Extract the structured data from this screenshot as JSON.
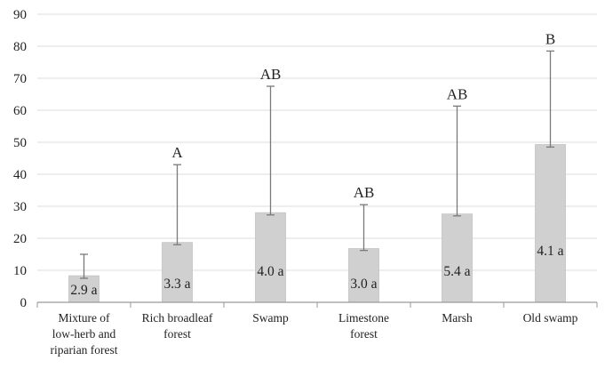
{
  "chart_data": {
    "type": "bar",
    "title": "",
    "xlabel": "",
    "ylabel": "",
    "ylim": [
      0,
      90
    ],
    "yticks": [
      0,
      10,
      20,
      30,
      40,
      50,
      60,
      70,
      80,
      90
    ],
    "grid": true,
    "legend": "none",
    "categories": [
      [
        "Mixture of",
        "low-herb and",
        "riparian forest"
      ],
      [
        "Rich broadleaf",
        "forest"
      ],
      [
        "Swamp"
      ],
      [
        "Limestone",
        "forest"
      ],
      [
        "Marsh"
      ],
      [
        "Old swamp"
      ]
    ],
    "values": [
      8.3,
      18.7,
      28.0,
      16.8,
      27.6,
      49.3
    ],
    "error_upper": [
      15.0,
      43.0,
      67.5,
      30.5,
      61.3,
      78.5
    ],
    "error_lower": [
      7.5,
      18.0,
      27.3,
      16.2,
      27.0,
      48.5
    ],
    "bar_labels": [
      "2.9 a",
      "3.3 a",
      "4.0 a",
      "3.0 a",
      "5.4 a",
      "4.1 a"
    ],
    "group_letters": [
      "",
      "A",
      "AB",
      "AB",
      "AB",
      "B"
    ],
    "colors": {
      "bar": "#d0d0d0",
      "bar_edge": "#c4c4c4",
      "error": "#7a7a7a",
      "grid": "#dcdcdc",
      "axis": "#9a9a9a"
    }
  }
}
